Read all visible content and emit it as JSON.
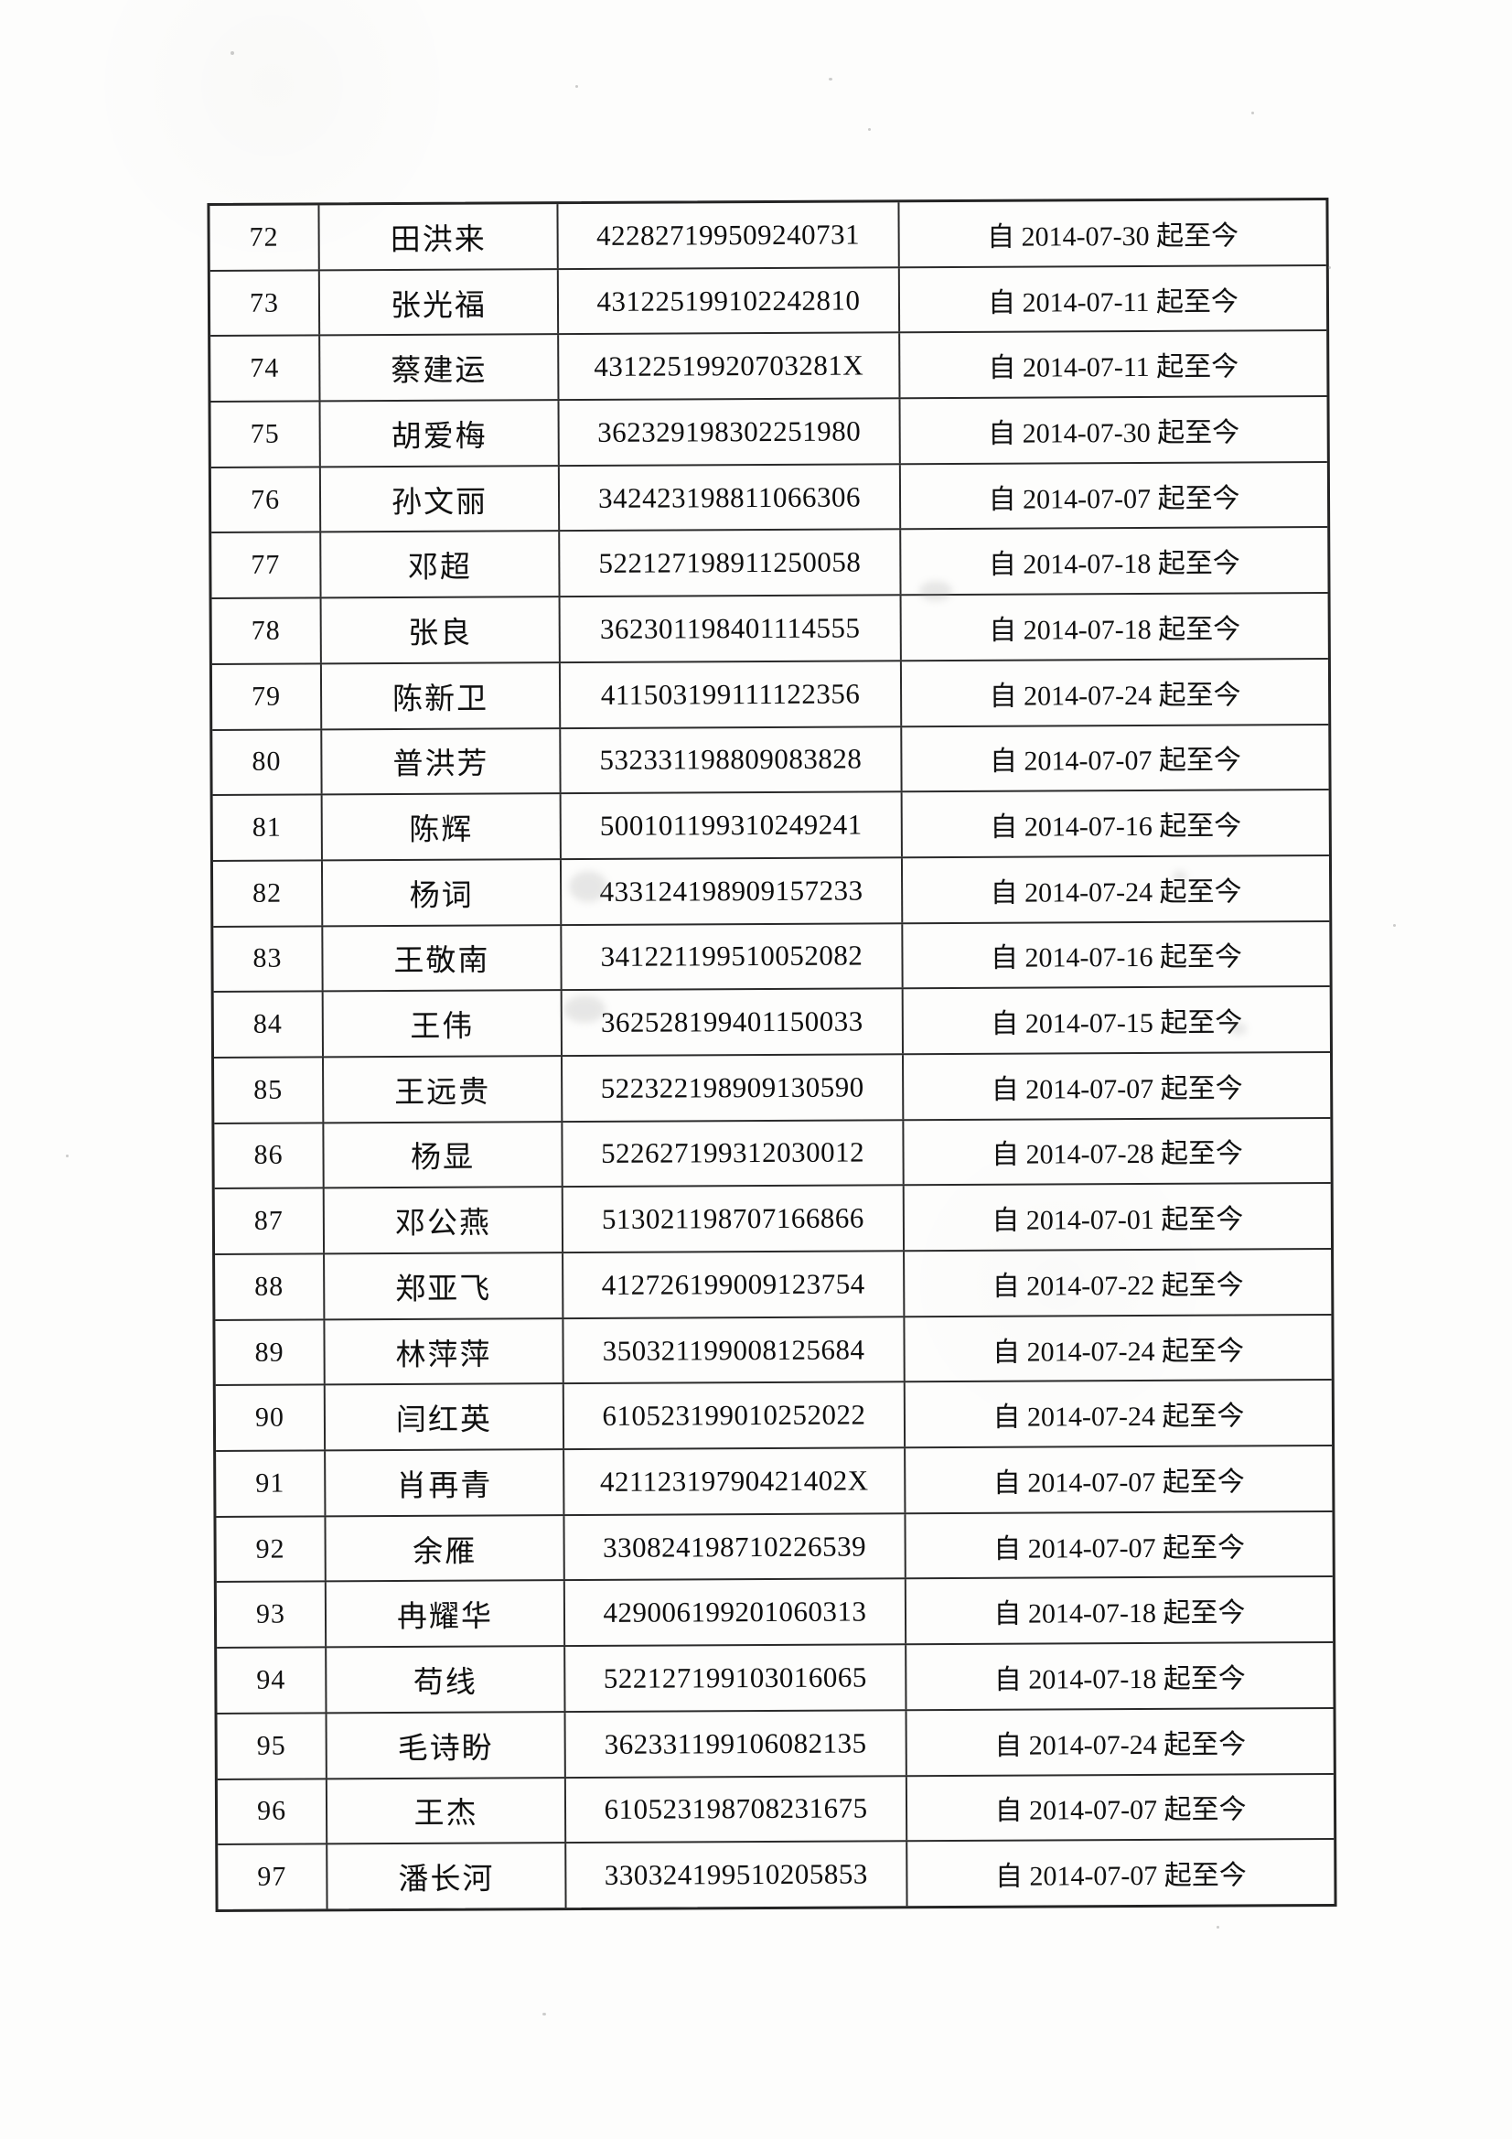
{
  "table": {
    "rows": [
      {
        "no": "72",
        "name": "田洪来",
        "id": "422827199509240731",
        "period": "自 2014-07-30 起至今"
      },
      {
        "no": "73",
        "name": "张光福",
        "id": "431225199102242810",
        "period": "自 2014-07-11 起至今"
      },
      {
        "no": "74",
        "name": "蔡建运",
        "id": "43122519920703281X",
        "period": "自 2014-07-11 起至今"
      },
      {
        "no": "75",
        "name": "胡爱梅",
        "id": "362329198302251980",
        "period": "自 2014-07-30 起至今"
      },
      {
        "no": "76",
        "name": "孙文丽",
        "id": "342423198811066306",
        "period": "自 2014-07-07 起至今"
      },
      {
        "no": "77",
        "name": "邓超",
        "id": "522127198911250058",
        "period": "自 2014-07-18 起至今"
      },
      {
        "no": "78",
        "name": "张良",
        "id": "362301198401114555",
        "period": "自 2014-07-18 起至今"
      },
      {
        "no": "79",
        "name": "陈新卫",
        "id": "411503199111122356",
        "period": "自 2014-07-24 起至今"
      },
      {
        "no": "80",
        "name": "普洪芳",
        "id": "532331198809083828",
        "period": "自 2014-07-07 起至今"
      },
      {
        "no": "81",
        "name": "陈辉",
        "id": "500101199310249241",
        "period": "自 2014-07-16 起至今"
      },
      {
        "no": "82",
        "name": "杨词",
        "id": "433124198909157233",
        "period": "自 2014-07-24 起至今"
      },
      {
        "no": "83",
        "name": "王敬南",
        "id": "341221199510052082",
        "period": "自 2014-07-16 起至今"
      },
      {
        "no": "84",
        "name": "王伟",
        "id": "362528199401150033",
        "period": "自 2014-07-15 起至今"
      },
      {
        "no": "85",
        "name": "王远贵",
        "id": "522322198909130590",
        "period": "自 2014-07-07 起至今"
      },
      {
        "no": "86",
        "name": "杨显",
        "id": "522627199312030012",
        "period": "自 2014-07-28 起至今"
      },
      {
        "no": "87",
        "name": "邓公燕",
        "id": "513021198707166866",
        "period": "自 2014-07-01 起至今"
      },
      {
        "no": "88",
        "name": "郑亚飞",
        "id": "412726199009123754",
        "period": "自 2014-07-22 起至今"
      },
      {
        "no": "89",
        "name": "林萍萍",
        "id": "350321199008125684",
        "period": "自 2014-07-24 起至今"
      },
      {
        "no": "90",
        "name": "闫红英",
        "id": "610523199010252022",
        "period": "自 2014-07-24 起至今"
      },
      {
        "no": "91",
        "name": "肖再青",
        "id": "42112319790421402X",
        "period": "自 2014-07-07 起至今"
      },
      {
        "no": "92",
        "name": "余雁",
        "id": "330824198710226539",
        "period": "自 2014-07-07 起至今"
      },
      {
        "no": "93",
        "name": "冉耀华",
        "id": "429006199201060313",
        "period": "自 2014-07-18 起至今"
      },
      {
        "no": "94",
        "name": "苟线",
        "id": "522127199103016065",
        "period": "自 2014-07-18 起至今"
      },
      {
        "no": "95",
        "name": "毛诗盼",
        "id": "362331199106082135",
        "period": "自 2014-07-24 起至今"
      },
      {
        "no": "96",
        "name": "王杰",
        "id": "610523198708231675",
        "period": "自 2014-07-07 起至今"
      },
      {
        "no": "97",
        "name": "潘长河",
        "id": "330324199510205853",
        "period": "自 2014-07-07 起至今"
      }
    ]
  }
}
